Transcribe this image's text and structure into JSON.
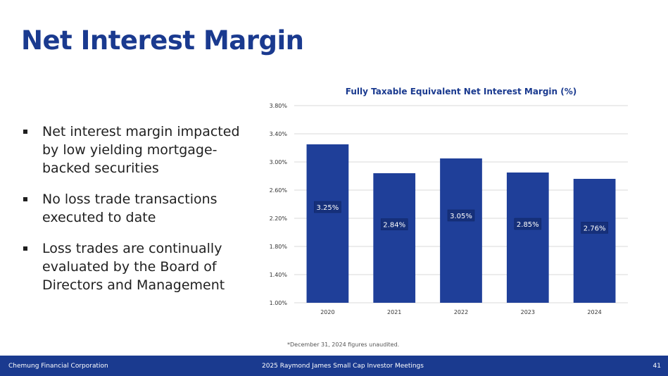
{
  "slide": {
    "title": "Net Interest Margin",
    "bullets": [
      "Net interest margin impacted by low yielding mortgage-backed securities",
      "No loss trade transactions executed to date",
      "Loss trades are continually evaluated by the Board of Directors and Management"
    ],
    "footnote": "*December 31, 2024 figures unaudited."
  },
  "footer": {
    "company": "Chemung Financial Corporation",
    "event": "2025 Raymond James Small Cap Investor Meetings",
    "page_number": "41"
  },
  "colors": {
    "brand": "#1a3a8f",
    "bar": "#1f3f99"
  },
  "chart_data": {
    "type": "bar",
    "title": "Fully Taxable Equivalent Net Interest Margin (%)",
    "categories": [
      "2020",
      "2021",
      "2022",
      "2023",
      "2024"
    ],
    "values": [
      3.25,
      2.84,
      3.05,
      2.85,
      2.76
    ],
    "data_labels": [
      "3.25%",
      "2.84%",
      "3.05%",
      "2.85%",
      "2.76%"
    ],
    "ylim": [
      1.0,
      3.8
    ],
    "yticks": [
      1.0,
      1.4,
      1.8,
      2.2,
      2.6,
      3.0,
      3.4,
      3.8
    ],
    "ytick_labels": [
      "1.00%",
      "1.40%",
      "1.80%",
      "2.20%",
      "2.60%",
      "3.00%",
      "3.40%",
      "3.80%"
    ],
    "grid": true,
    "xlabel": "",
    "ylabel": ""
  }
}
